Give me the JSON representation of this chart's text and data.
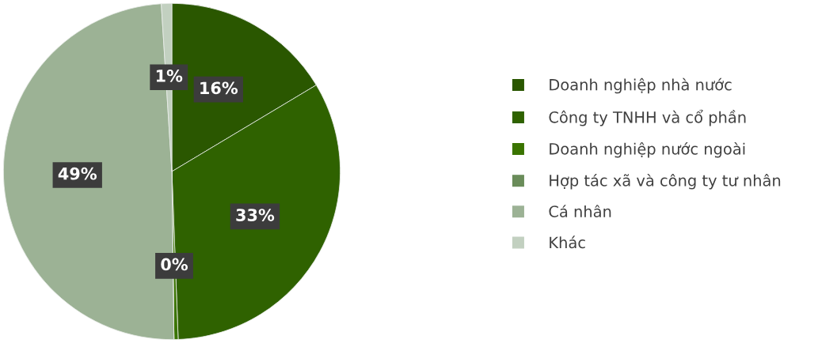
{
  "chart_data": {
    "type": "pie",
    "categories": [
      "Doanh nghiệp nhà nước",
      "Công ty TNHH và cổ phần",
      "Doanh nghiệp nước ngoài",
      "Hợp tác xã và công ty tư nhân",
      "Cá nhân",
      "Khác"
    ],
    "values": [
      16.4,
      33,
      0.4,
      0,
      49.2,
      1
    ],
    "value_labels": [
      "16%",
      "33%",
      "0%",
      null,
      "49%",
      "1%"
    ],
    "colors": [
      "#2a5700",
      "#2f6200",
      "#3a7400",
      "#6a8c5a",
      "#9cb295",
      "#c2d0c0"
    ],
    "legend": "right"
  }
}
